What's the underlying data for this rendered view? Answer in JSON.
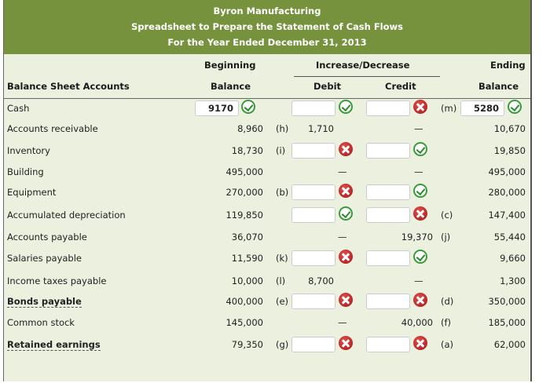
{
  "banner": {
    "company": "Byron Manufacturing",
    "title": "Spreadsheet to Prepare the Statement of Cash Flows",
    "period": "For the Year Ended December 31, 2013"
  },
  "headers": {
    "accounts": "Balance Sheet Accounts",
    "beginning_1": "Beginning",
    "beginning_2": "Balance",
    "incdec": "Increase/Decrease",
    "debit": "Debit",
    "credit": "Credit",
    "ending_1": "Ending",
    "ending_2": "Balance"
  },
  "rows": [
    {
      "account": "Cash",
      "bold": false,
      "beginning": {
        "type": "input",
        "value": "9170",
        "status": "correct"
      },
      "debit_ref": "",
      "debit": {
        "type": "input",
        "value": "",
        "status": "correct"
      },
      "credit": {
        "type": "input",
        "value": "",
        "status": "incorrect"
      },
      "credit_ref": "(m)",
      "ending": {
        "type": "input",
        "value": "5280",
        "status": "correct"
      }
    },
    {
      "account": "Accounts receivable",
      "bold": false,
      "beginning": {
        "type": "text",
        "value": "8,960"
      },
      "debit_ref": "(h)",
      "debit": {
        "type": "text",
        "value": "1,710"
      },
      "credit": {
        "type": "dash",
        "value": "—"
      },
      "credit_ref": "",
      "ending": {
        "type": "text",
        "value": "10,670"
      }
    },
    {
      "account": "Inventory",
      "bold": false,
      "beginning": {
        "type": "text",
        "value": "18,730"
      },
      "debit_ref": "(i)",
      "debit": {
        "type": "input",
        "value": "",
        "status": "incorrect"
      },
      "credit": {
        "type": "input",
        "value": "",
        "status": "correct"
      },
      "credit_ref": "",
      "ending": {
        "type": "text",
        "value": "19,850"
      }
    },
    {
      "account": "Building",
      "bold": false,
      "beginning": {
        "type": "text",
        "value": "495,000"
      },
      "debit_ref": "",
      "debit": {
        "type": "dash",
        "value": "—"
      },
      "credit": {
        "type": "dash",
        "value": "—"
      },
      "credit_ref": "",
      "ending": {
        "type": "text",
        "value": "495,000"
      }
    },
    {
      "account": "Equipment",
      "bold": false,
      "beginning": {
        "type": "text",
        "value": "270,000"
      },
      "debit_ref": "(b)",
      "debit": {
        "type": "input",
        "value": "",
        "status": "incorrect"
      },
      "credit": {
        "type": "input",
        "value": "",
        "status": "correct"
      },
      "credit_ref": "",
      "ending": {
        "type": "text",
        "value": "280,000"
      }
    },
    {
      "account": "Accumulated depreciation",
      "bold": false,
      "beginning": {
        "type": "text",
        "value": "119,850"
      },
      "debit_ref": "",
      "debit": {
        "type": "input",
        "value": "",
        "status": "correct"
      },
      "credit": {
        "type": "input",
        "value": "",
        "status": "incorrect"
      },
      "credit_ref": "(c)",
      "ending": {
        "type": "text",
        "value": "147,400"
      }
    },
    {
      "account": "Accounts payable",
      "bold": false,
      "beginning": {
        "type": "text",
        "value": "36,070"
      },
      "debit_ref": "",
      "debit": {
        "type": "dash",
        "value": "—"
      },
      "credit": {
        "type": "text",
        "value": "19,370"
      },
      "credit_ref": "(j)",
      "ending": {
        "type": "text",
        "value": "55,440"
      }
    },
    {
      "account": "Salaries payable",
      "bold": false,
      "beginning": {
        "type": "text",
        "value": "11,590"
      },
      "debit_ref": "(k)",
      "debit": {
        "type": "input",
        "value": "",
        "status": "incorrect"
      },
      "credit": {
        "type": "input",
        "value": "",
        "status": "correct"
      },
      "credit_ref": "",
      "ending": {
        "type": "text",
        "value": "9,660"
      }
    },
    {
      "account": "Income taxes payable",
      "bold": false,
      "beginning": {
        "type": "text",
        "value": "10,000"
      },
      "debit_ref": "(l)",
      "debit": {
        "type": "text",
        "value": "8,700"
      },
      "credit": {
        "type": "dash",
        "value": "—"
      },
      "credit_ref": "",
      "ending": {
        "type": "text",
        "value": "1,300"
      }
    },
    {
      "account": "Bonds payable",
      "bold": true,
      "beginning": {
        "type": "text",
        "value": "400,000"
      },
      "debit_ref": "(e)",
      "debit": {
        "type": "input",
        "value": "",
        "status": "incorrect"
      },
      "credit": {
        "type": "input",
        "value": "",
        "status": "incorrect"
      },
      "credit_ref": "(d)",
      "ending": {
        "type": "text",
        "value": "350,000"
      }
    },
    {
      "account": "Common stock",
      "bold": false,
      "beginning": {
        "type": "text",
        "value": "145,000"
      },
      "debit_ref": "",
      "debit": {
        "type": "dash",
        "value": "—"
      },
      "credit": {
        "type": "text",
        "value": "40,000"
      },
      "credit_ref": "(f)",
      "ending": {
        "type": "text",
        "value": "185,000"
      }
    },
    {
      "account": "Retained earnings",
      "bold": true,
      "beginning": {
        "type": "text",
        "value": "79,350"
      },
      "debit_ref": "(g)",
      "debit": {
        "type": "input",
        "value": "",
        "status": "incorrect"
      },
      "credit": {
        "type": "input",
        "value": "",
        "status": "incorrect"
      },
      "credit_ref": "(a)",
      "ending": {
        "type": "text",
        "value": "62,000"
      }
    }
  ],
  "colors": {
    "banner": "#76923c",
    "body": "#ebf1de",
    "correct": "#3a9b3a",
    "incorrect": "#b3191e"
  }
}
